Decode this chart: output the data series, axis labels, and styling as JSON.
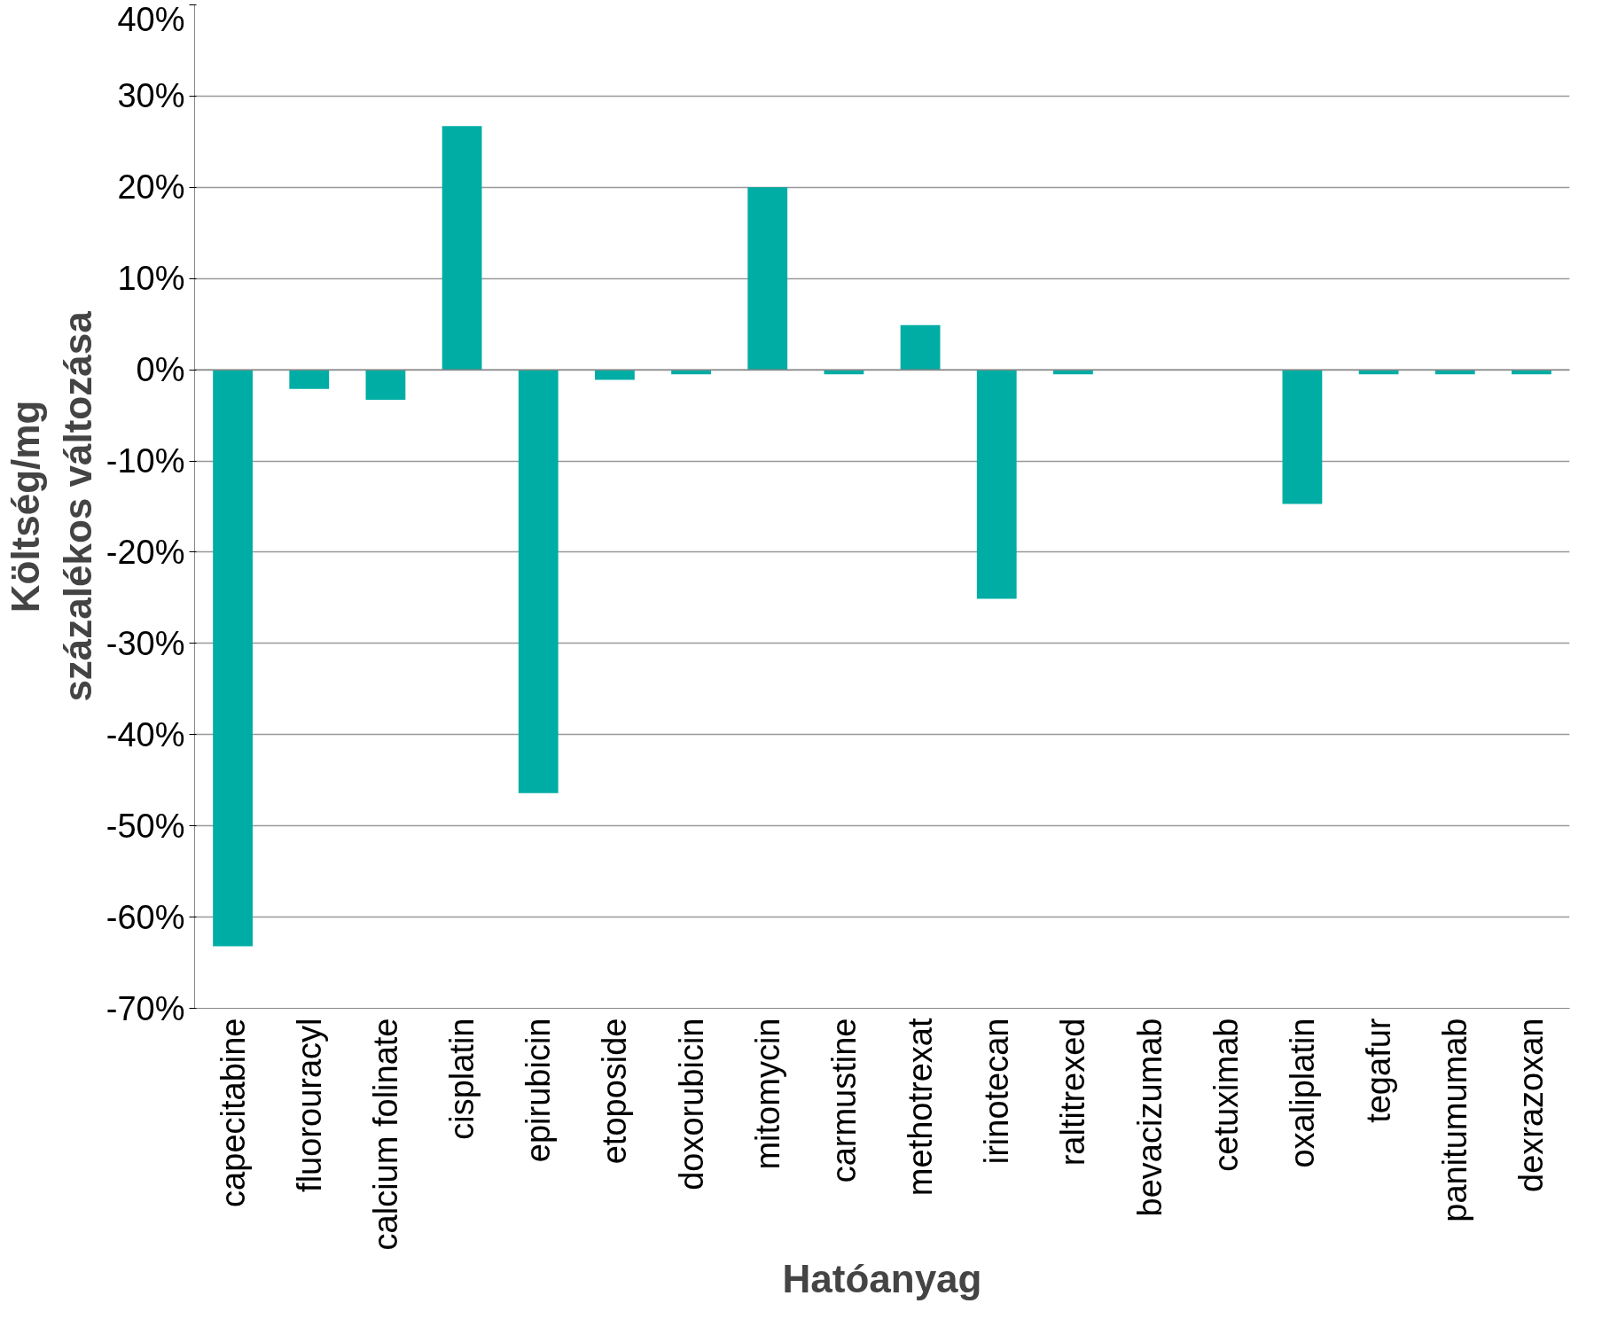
{
  "chart_data": {
    "type": "bar",
    "xlabel": "Hatóanyag",
    "ylabel": "Költség/mg\nszázalékos változása",
    "categories": [
      "capecitabine",
      "fluorouracyl",
      "calcium folinate",
      "cisplatin",
      "epirubicin",
      "etoposide",
      "doxorubicin",
      "mitomycin",
      "carmustine",
      "methotrexat",
      "irinotecan",
      "raltitrexed",
      "bevacizumab",
      "cetuximab",
      "oxaliplatin",
      "tegafur",
      "panitumumab",
      "dexrazoxan"
    ],
    "values": [
      -63.2,
      -2.1,
      -3.3,
      26.7,
      -46.4,
      -1.1,
      -0.5,
      20,
      -0.5,
      4.9,
      -25.1,
      -0.5,
      0,
      0,
      -14.7,
      -0.5,
      -0.5,
      -0.5
    ],
    "color": "#00ada5",
    "ylim": [
      -70,
      40
    ],
    "yticks": [
      {
        "value": -70,
        "label": "-70%"
      },
      {
        "value": -60,
        "label": "-60%"
      },
      {
        "value": -50,
        "label": "-50%"
      },
      {
        "value": -40,
        "label": "-40%"
      },
      {
        "value": -30,
        "label": "-30%"
      },
      {
        "value": -20,
        "label": "-20%"
      },
      {
        "value": -10,
        "label": "-10%"
      },
      {
        "value": 0,
        "label": "0%"
      },
      {
        "value": 10,
        "label": "10%"
      },
      {
        "value": 20,
        "label": "20%"
      },
      {
        "value": 30,
        "label": "30%"
      },
      {
        "value": 40,
        "label": "40%"
      }
    ],
    "grid": "y"
  }
}
